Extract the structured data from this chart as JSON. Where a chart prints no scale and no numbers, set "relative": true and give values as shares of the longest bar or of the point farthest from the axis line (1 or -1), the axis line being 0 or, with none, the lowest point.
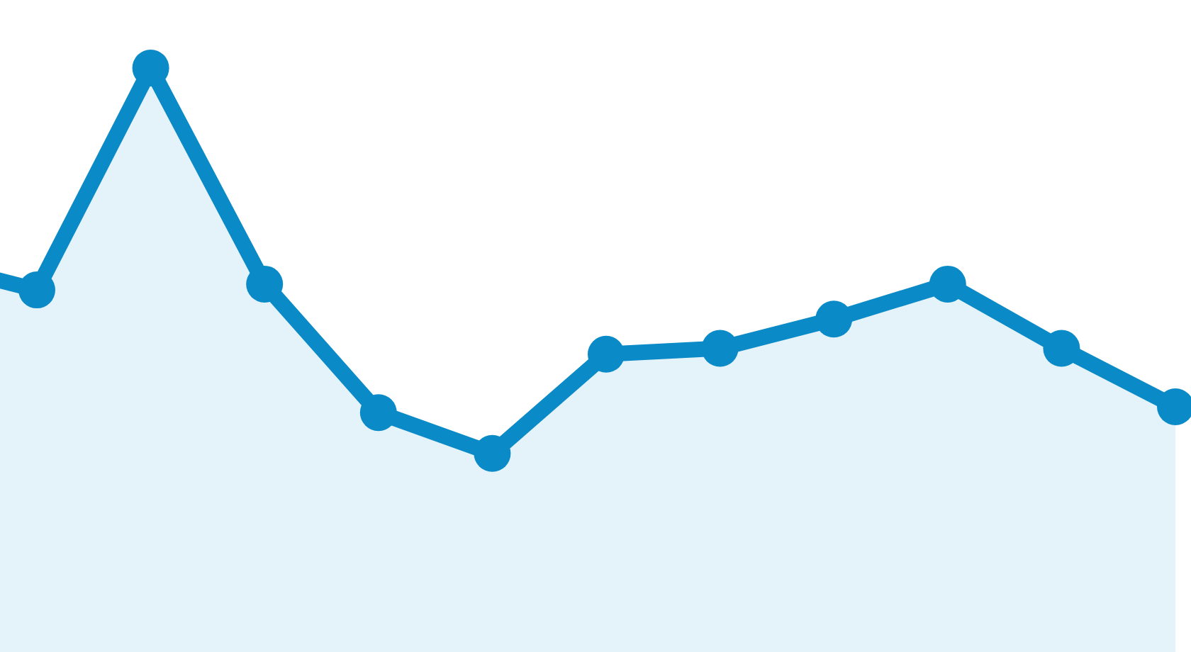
{
  "chart_data": {
    "type": "area",
    "relative": true,
    "marker": "circle",
    "categories": [
      null,
      null,
      null,
      null,
      null,
      null,
      null,
      null,
      null,
      null,
      null,
      null
    ],
    "series": [
      {
        "color": "#0a8ac6",
        "values": [
          0.67,
          0.62,
          1.0,
          0.63,
          0.41,
          0.34,
          0.51,
          0.52,
          0.57,
          0.63,
          0.52,
          0.42
        ]
      }
    ]
  }
}
